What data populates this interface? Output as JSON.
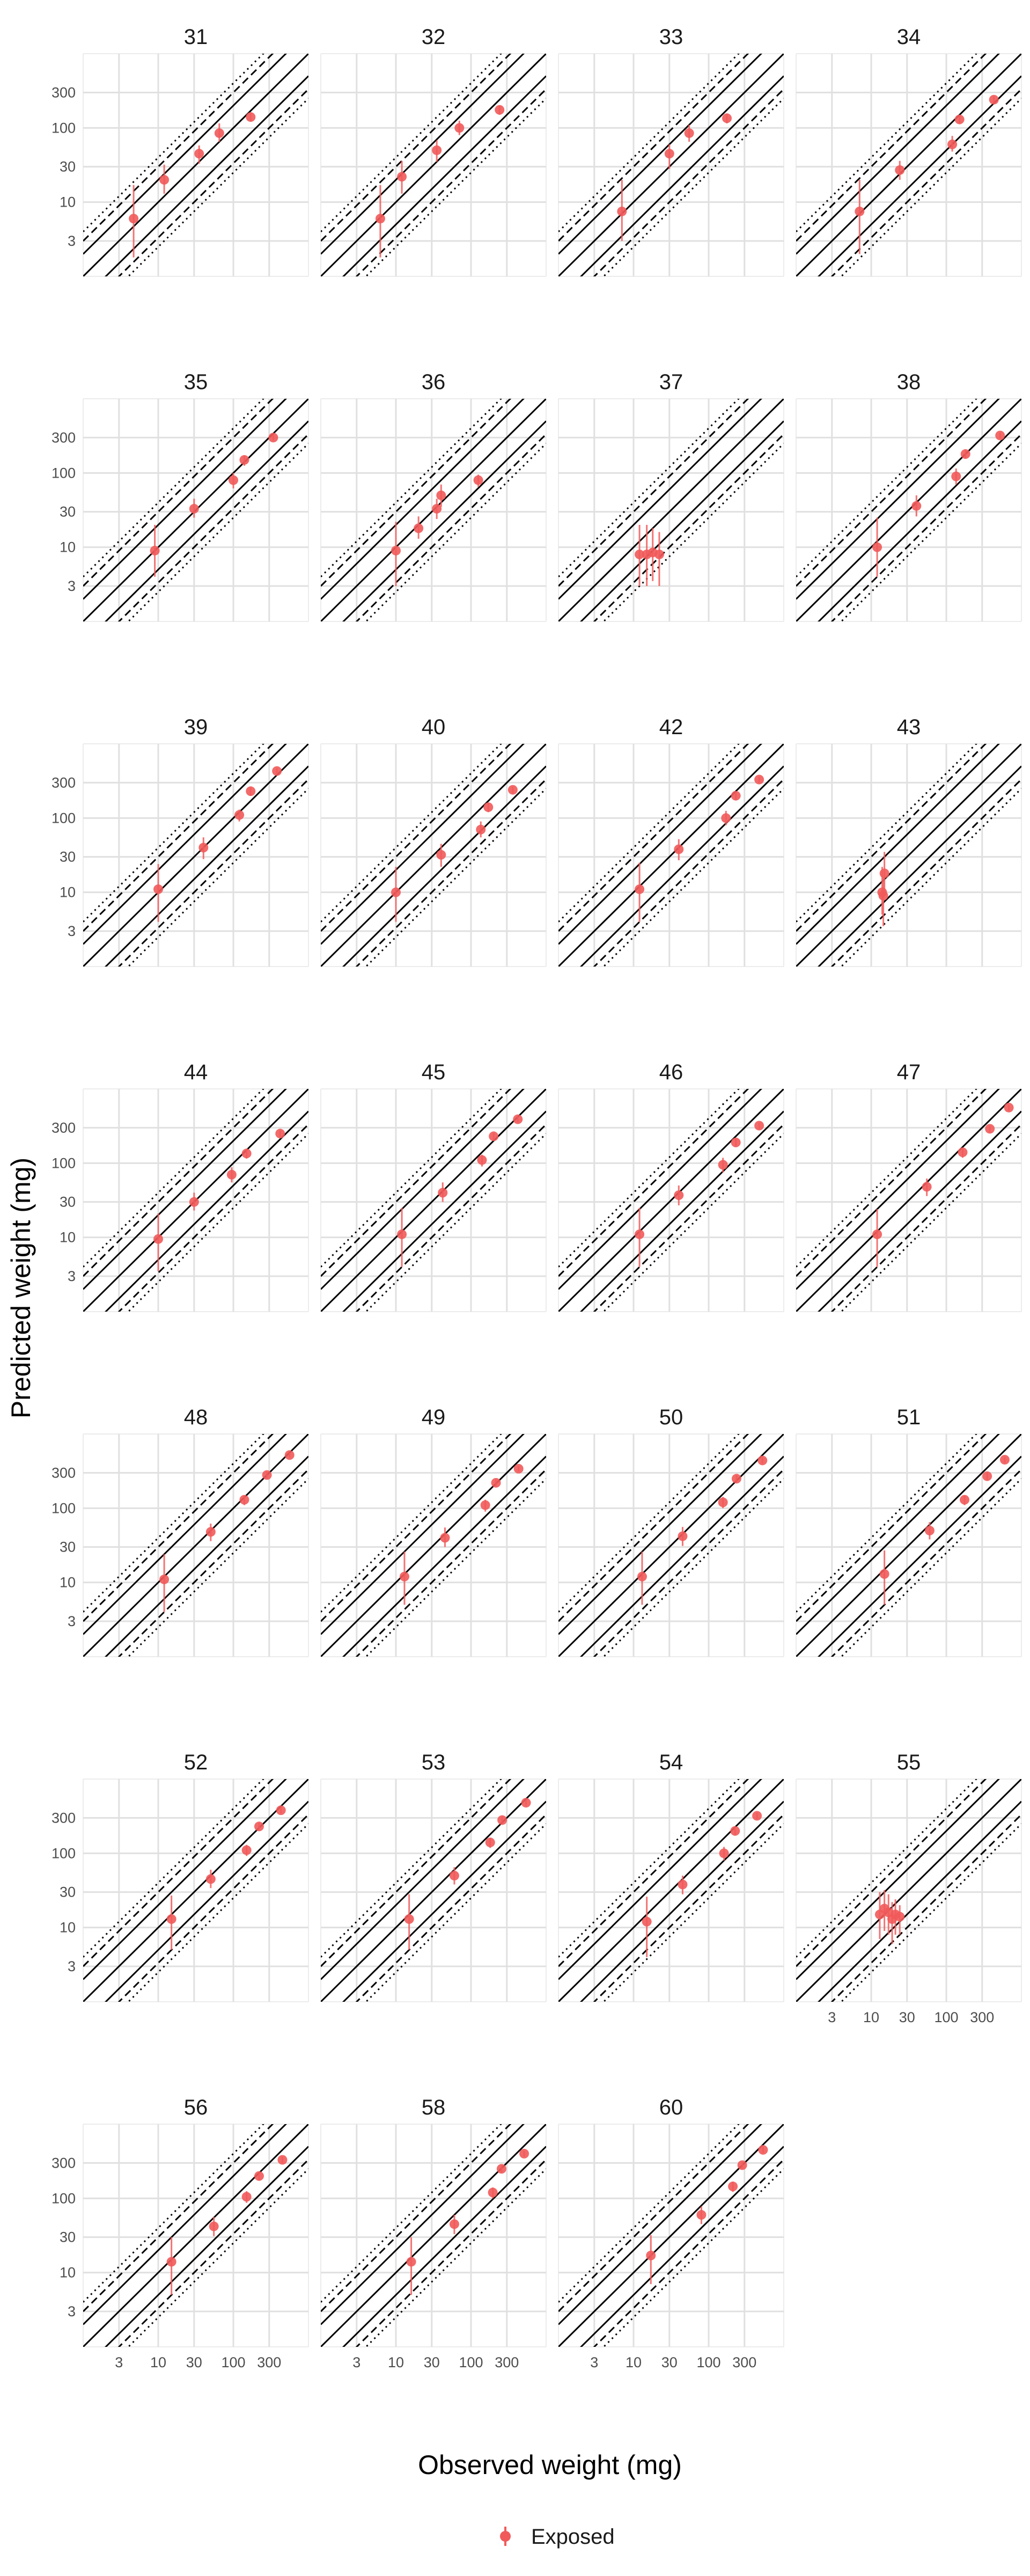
{
  "chart_data": {
    "type": "scatter",
    "xlabel": "Observed weight (mg)",
    "ylabel": "Predicted weight (mg)",
    "x_scale": "log",
    "y_scale": "log",
    "xlim": [
      1,
      1000
    ],
    "ylim": [
      1,
      1000
    ],
    "x_ticks": [
      3,
      10,
      30,
      100,
      300
    ],
    "y_ticks": [
      3,
      10,
      30,
      100,
      300
    ],
    "x_tick_labels": [
      "3",
      "10",
      "30",
      "100",
      "300"
    ],
    "y_tick_labels": [
      "3",
      "10",
      "30",
      "100",
      "300"
    ],
    "grid": true,
    "reference_lines": {
      "identity": [
        1
      ],
      "solid": [
        0.5,
        2
      ],
      "dashed": [
        0.333,
        3
      ],
      "dotted": [
        0.25,
        4
      ]
    },
    "legend": {
      "position": "bottom",
      "entries": [
        "Exposed"
      ]
    },
    "series_color": "#f15a5a",
    "panels": [
      {
        "title": "31",
        "points": [
          {
            "x": 4.7,
            "y": 6.0,
            "lo": 1.8,
            "hi": 17
          },
          {
            "x": 12,
            "y": 20,
            "lo": 13,
            "hi": 32
          },
          {
            "x": 35,
            "y": 45,
            "lo": 33,
            "hi": 58
          },
          {
            "x": 65,
            "y": 85,
            "lo": 65,
            "hi": 115
          },
          {
            "x": 170,
            "y": 140,
            "lo": 122,
            "hi": 160
          }
        ]
      },
      {
        "title": "32",
        "points": [
          {
            "x": 6.2,
            "y": 6.0,
            "lo": 1.8,
            "hi": 17
          },
          {
            "x": 12,
            "y": 22,
            "lo": 13,
            "hi": 36
          },
          {
            "x": 35,
            "y": 50,
            "lo": 35,
            "hi": 68
          },
          {
            "x": 70,
            "y": 100,
            "lo": 80,
            "hi": 125
          },
          {
            "x": 240,
            "y": 175,
            "lo": 150,
            "hi": 200
          }
        ]
      },
      {
        "title": "33",
        "points": [
          {
            "x": 7.0,
            "y": 7.5,
            "lo": 3.0,
            "hi": 20
          },
          {
            "x": 30,
            "y": 45,
            "lo": 28,
            "hi": 60
          },
          {
            "x": 55,
            "y": 85,
            "lo": 65,
            "hi": 110
          },
          {
            "x": 175,
            "y": 135,
            "lo": 115,
            "hi": 155
          }
        ]
      },
      {
        "title": "34",
        "points": [
          {
            "x": 7.0,
            "y": 7.5,
            "lo": 2.0,
            "hi": 20
          },
          {
            "x": 24,
            "y": 27,
            "lo": 20,
            "hi": 36
          },
          {
            "x": 120,
            "y": 60,
            "lo": 48,
            "hi": 78
          },
          {
            "x": 150,
            "y": 130,
            "lo": 115,
            "hi": 148
          },
          {
            "x": 430,
            "y": 240,
            "lo": 215,
            "hi": 270
          }
        ]
      },
      {
        "title": "35",
        "points": [
          {
            "x": 9.0,
            "y": 9.0,
            "lo": 4.0,
            "hi": 20
          },
          {
            "x": 30,
            "y": 33,
            "lo": 25,
            "hi": 45
          },
          {
            "x": 100,
            "y": 80,
            "lo": 62,
            "hi": 100
          },
          {
            "x": 140,
            "y": 150,
            "lo": 125,
            "hi": 170
          },
          {
            "x": 340,
            "y": 300,
            "lo": 275,
            "hi": 330
          }
        ]
      },
      {
        "title": "36",
        "points": [
          {
            "x": 10,
            "y": 9.0,
            "lo": 3.0,
            "hi": 22
          },
          {
            "x": 20,
            "y": 18,
            "lo": 13,
            "hi": 26
          },
          {
            "x": 35,
            "y": 33,
            "lo": 24,
            "hi": 45
          },
          {
            "x": 40,
            "y": 50,
            "lo": 35,
            "hi": 70
          },
          {
            "x": 125,
            "y": 80,
            "lo": 65,
            "hi": 95
          }
        ]
      },
      {
        "title": "37",
        "points": [
          {
            "x": 12,
            "y": 8.0,
            "lo": 3.0,
            "hi": 20
          },
          {
            "x": 15,
            "y": 8.0,
            "lo": 3.0,
            "hi": 20
          },
          {
            "x": 18,
            "y": 8.5,
            "lo": 3.5,
            "hi": 18
          },
          {
            "x": 22,
            "y": 8.0,
            "lo": 3.0,
            "hi": 16
          }
        ]
      },
      {
        "title": "38",
        "points": [
          {
            "x": 12,
            "y": 10,
            "lo": 4.0,
            "hi": 25
          },
          {
            "x": 40,
            "y": 36,
            "lo": 26,
            "hi": 50
          },
          {
            "x": 135,
            "y": 90,
            "lo": 70,
            "hi": 115
          },
          {
            "x": 180,
            "y": 180,
            "lo": 155,
            "hi": 205
          },
          {
            "x": 520,
            "y": 320,
            "lo": 290,
            "hi": 350
          }
        ]
      },
      {
        "title": "39",
        "points": [
          {
            "x": 10,
            "y": 11,
            "lo": 4.0,
            "hi": 24
          },
          {
            "x": 40,
            "y": 40,
            "lo": 28,
            "hi": 55
          },
          {
            "x": 120,
            "y": 110,
            "lo": 90,
            "hi": 130
          },
          {
            "x": 170,
            "y": 230,
            "lo": 200,
            "hi": 260
          },
          {
            "x": 380,
            "y": 430,
            "lo": 390,
            "hi": 470
          }
        ]
      },
      {
        "title": "40",
        "points": [
          {
            "x": 10,
            "y": 10,
            "lo": 4.0,
            "hi": 22
          },
          {
            "x": 40,
            "y": 32,
            "lo": 22,
            "hi": 45
          },
          {
            "x": 135,
            "y": 70,
            "lo": 55,
            "hi": 90
          },
          {
            "x": 170,
            "y": 140,
            "lo": 120,
            "hi": 160
          },
          {
            "x": 360,
            "y": 240,
            "lo": 215,
            "hi": 265
          }
        ]
      },
      {
        "title": "42",
        "points": [
          {
            "x": 12,
            "y": 11,
            "lo": 4.0,
            "hi": 25
          },
          {
            "x": 40,
            "y": 38,
            "lo": 27,
            "hi": 52
          },
          {
            "x": 170,
            "y": 100,
            "lo": 80,
            "hi": 125
          },
          {
            "x": 230,
            "y": 200,
            "lo": 175,
            "hi": 225
          },
          {
            "x": 470,
            "y": 330,
            "lo": 300,
            "hi": 360
          }
        ]
      },
      {
        "title": "43",
        "points": [
          {
            "x": 15,
            "y": 18,
            "lo": 9.0,
            "hi": 35
          },
          {
            "x": 14,
            "y": 10,
            "lo": 5.0,
            "hi": 22
          },
          {
            "x": 14.5,
            "y": 9.0,
            "lo": 3.5,
            "hi": 16
          }
        ]
      },
      {
        "title": "44",
        "points": [
          {
            "x": 10,
            "y": 9.5,
            "lo": 3.5,
            "hi": 21
          },
          {
            "x": 30,
            "y": 30,
            "lo": 23,
            "hi": 40
          },
          {
            "x": 95,
            "y": 70,
            "lo": 55,
            "hi": 88
          },
          {
            "x": 150,
            "y": 135,
            "lo": 115,
            "hi": 155
          },
          {
            "x": 420,
            "y": 250,
            "lo": 225,
            "hi": 275
          }
        ]
      },
      {
        "title": "45",
        "points": [
          {
            "x": 12,
            "y": 11,
            "lo": 4.0,
            "hi": 25
          },
          {
            "x": 42,
            "y": 40,
            "lo": 30,
            "hi": 55
          },
          {
            "x": 140,
            "y": 110,
            "lo": 90,
            "hi": 130
          },
          {
            "x": 200,
            "y": 230,
            "lo": 205,
            "hi": 255
          },
          {
            "x": 420,
            "y": 390,
            "lo": 355,
            "hi": 425
          }
        ]
      },
      {
        "title": "46",
        "points": [
          {
            "x": 12,
            "y": 11,
            "lo": 4.0,
            "hi": 25
          },
          {
            "x": 40,
            "y": 37,
            "lo": 27,
            "hi": 50
          },
          {
            "x": 155,
            "y": 95,
            "lo": 75,
            "hi": 118
          },
          {
            "x": 230,
            "y": 190,
            "lo": 165,
            "hi": 215
          },
          {
            "x": 470,
            "y": 320,
            "lo": 290,
            "hi": 350
          }
        ]
      },
      {
        "title": "47",
        "points": [
          {
            "x": 12,
            "y": 11,
            "lo": 4.0,
            "hi": 24
          },
          {
            "x": 55,
            "y": 48,
            "lo": 36,
            "hi": 62
          },
          {
            "x": 165,
            "y": 140,
            "lo": 118,
            "hi": 162
          },
          {
            "x": 380,
            "y": 290,
            "lo": 260,
            "hi": 320
          },
          {
            "x": 680,
            "y": 560,
            "lo": 510,
            "hi": 610
          }
        ]
      },
      {
        "title": "48",
        "points": [
          {
            "x": 12,
            "y": 11,
            "lo": 4.0,
            "hi": 24
          },
          {
            "x": 50,
            "y": 48,
            "lo": 36,
            "hi": 62
          },
          {
            "x": 140,
            "y": 130,
            "lo": 110,
            "hi": 150
          },
          {
            "x": 280,
            "y": 280,
            "lo": 250,
            "hi": 310
          },
          {
            "x": 560,
            "y": 520,
            "lo": 480,
            "hi": 560
          }
        ]
      },
      {
        "title": "49",
        "points": [
          {
            "x": 13,
            "y": 12,
            "lo": 5.0,
            "hi": 26
          },
          {
            "x": 45,
            "y": 40,
            "lo": 30,
            "hi": 55
          },
          {
            "x": 155,
            "y": 110,
            "lo": 90,
            "hi": 130
          },
          {
            "x": 215,
            "y": 220,
            "lo": 195,
            "hi": 245
          },
          {
            "x": 430,
            "y": 340,
            "lo": 310,
            "hi": 370
          }
        ]
      },
      {
        "title": "50",
        "points": [
          {
            "x": 13,
            "y": 12,
            "lo": 5.0,
            "hi": 26
          },
          {
            "x": 45,
            "y": 42,
            "lo": 31,
            "hi": 56
          },
          {
            "x": 155,
            "y": 120,
            "lo": 100,
            "hi": 142
          },
          {
            "x": 235,
            "y": 250,
            "lo": 222,
            "hi": 278
          },
          {
            "x": 520,
            "y": 440,
            "lo": 400,
            "hi": 480
          }
        ]
      },
      {
        "title": "51",
        "points": [
          {
            "x": 15,
            "y": 13,
            "lo": 5.0,
            "hi": 27
          },
          {
            "x": 60,
            "y": 50,
            "lo": 38,
            "hi": 65
          },
          {
            "x": 175,
            "y": 130,
            "lo": 110,
            "hi": 150
          },
          {
            "x": 350,
            "y": 270,
            "lo": 240,
            "hi": 300
          },
          {
            "x": 600,
            "y": 450,
            "lo": 410,
            "hi": 490
          }
        ]
      },
      {
        "title": "52",
        "points": [
          {
            "x": 15,
            "y": 13,
            "lo": 5.0,
            "hi": 27
          },
          {
            "x": 50,
            "y": 45,
            "lo": 34,
            "hi": 60
          },
          {
            "x": 150,
            "y": 110,
            "lo": 92,
            "hi": 130
          },
          {
            "x": 220,
            "y": 230,
            "lo": 205,
            "hi": 255
          },
          {
            "x": 430,
            "y": 380,
            "lo": 345,
            "hi": 415
          }
        ]
      },
      {
        "title": "53",
        "points": [
          {
            "x": 15,
            "y": 13,
            "lo": 5.0,
            "hi": 28
          },
          {
            "x": 60,
            "y": 50,
            "lo": 38,
            "hi": 65
          },
          {
            "x": 180,
            "y": 140,
            "lo": 118,
            "hi": 162
          },
          {
            "x": 260,
            "y": 280,
            "lo": 250,
            "hi": 310
          },
          {
            "x": 540,
            "y": 480,
            "lo": 440,
            "hi": 520
          }
        ]
      },
      {
        "title": "54",
        "points": [
          {
            "x": 15,
            "y": 12,
            "lo": 4.0,
            "hi": 26
          },
          {
            "x": 45,
            "y": 38,
            "lo": 28,
            "hi": 50
          },
          {
            "x": 160,
            "y": 100,
            "lo": 80,
            "hi": 122
          },
          {
            "x": 225,
            "y": 200,
            "lo": 175,
            "hi": 225
          },
          {
            "x": 440,
            "y": 320,
            "lo": 290,
            "hi": 350
          }
        ]
      },
      {
        "title": "55",
        "points": [
          {
            "x": 13,
            "y": 15,
            "lo": 7.0,
            "hi": 30
          },
          {
            "x": 15,
            "y": 18,
            "lo": 9.0,
            "hi": 32
          },
          {
            "x": 17,
            "y": 16,
            "lo": 8.0,
            "hi": 28
          },
          {
            "x": 19,
            "y": 13,
            "lo": 6.0,
            "hi": 22
          },
          {
            "x": 21,
            "y": 15,
            "lo": 8.0,
            "hi": 24
          },
          {
            "x": 24,
            "y": 14,
            "lo": 8.0,
            "hi": 20
          }
        ]
      },
      {
        "title": "56",
        "points": [
          {
            "x": 15,
            "y": 14,
            "lo": 5.0,
            "hi": 30
          },
          {
            "x": 55,
            "y": 42,
            "lo": 31,
            "hi": 56
          },
          {
            "x": 150,
            "y": 105,
            "lo": 87,
            "hi": 125
          },
          {
            "x": 220,
            "y": 200,
            "lo": 175,
            "hi": 225
          },
          {
            "x": 450,
            "y": 330,
            "lo": 300,
            "hi": 360
          }
        ]
      },
      {
        "title": "58",
        "points": [
          {
            "x": 16,
            "y": 14,
            "lo": 5.0,
            "hi": 30
          },
          {
            "x": 60,
            "y": 45,
            "lo": 33,
            "hi": 60
          },
          {
            "x": 195,
            "y": 120,
            "lo": 100,
            "hi": 140
          },
          {
            "x": 255,
            "y": 250,
            "lo": 222,
            "hi": 278
          },
          {
            "x": 510,
            "y": 400,
            "lo": 365,
            "hi": 435
          }
        ]
      },
      {
        "title": "60",
        "points": [
          {
            "x": 17,
            "y": 17,
            "lo": 7.0,
            "hi": 32
          },
          {
            "x": 80,
            "y": 60,
            "lo": 45,
            "hi": 78
          },
          {
            "x": 210,
            "y": 145,
            "lo": 122,
            "hi": 168
          },
          {
            "x": 280,
            "y": 280,
            "lo": 250,
            "hi": 310
          },
          {
            "x": 530,
            "y": 450,
            "lo": 410,
            "hi": 490
          }
        ]
      }
    ]
  }
}
